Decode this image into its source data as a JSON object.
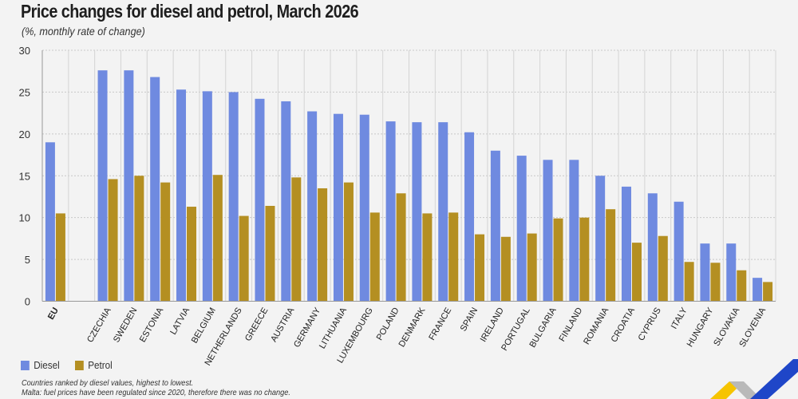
{
  "header": {
    "title": "Price changes for diesel and petrol, March 2026",
    "subtitle": "(%, monthly rate of change)"
  },
  "colors": {
    "diesel": "#6f8ae0",
    "petrol": "#b48f22",
    "background": "#f3f3f3",
    "gridline": "#c8c8c8",
    "axis": "#999999"
  },
  "legend": {
    "items": [
      {
        "label": "Diesel",
        "color": "#6f8ae0"
      },
      {
        "label": "Petrol",
        "color": "#b48f22"
      }
    ]
  },
  "notes": [
    "Countries ranked by diesel values, highest to lowest.",
    "Malta: fuel prices have been regulated since 2020, therefore there was no change."
  ],
  "chart_data": {
    "type": "bar",
    "title": "Price changes for diesel and petrol, March 2026",
    "subtitle": "(%, monthly rate of change)",
    "xlabel": "",
    "ylabel": "",
    "ylim": [
      0,
      30
    ],
    "yticks": [
      0,
      5,
      10,
      15,
      20,
      25,
      30
    ],
    "grid": true,
    "legend_position": "bottom-left",
    "categories": [
      "EU",
      "CZECHIA",
      "SWEDEN",
      "ESTONIA",
      "LATVIA",
      "BELGIUM",
      "NETHERLANDS",
      "GREECE",
      "AUSTRIA",
      "GERMANY",
      "LITHUANIA",
      "LUXEMBOURG",
      "POLAND",
      "DENMARK",
      "FRANCE",
      "SPAIN",
      "IRELAND",
      "PORTUGAL",
      "BULGARIA",
      "FINLAND",
      "ROMANIA",
      "CROATIA",
      "CYPRUS",
      "ITALY",
      "HUNGARY",
      "SLOVAKIA",
      "SLOVENIA"
    ],
    "bold_categories": [
      "EU"
    ],
    "gap_after": [
      "EU"
    ],
    "series": [
      {
        "name": "Diesel",
        "values": [
          19.0,
          27.6,
          27.6,
          26.8,
          25.3,
          25.1,
          25.0,
          24.2,
          23.9,
          22.7,
          22.4,
          22.3,
          21.5,
          21.4,
          21.4,
          20.2,
          18.0,
          17.4,
          16.9,
          16.9,
          15.0,
          13.7,
          12.9,
          11.9,
          6.9,
          6.9,
          2.8
        ]
      },
      {
        "name": "Petrol",
        "values": [
          10.5,
          14.6,
          15.0,
          14.2,
          11.3,
          15.1,
          10.2,
          11.4,
          14.8,
          13.5,
          14.2,
          10.6,
          12.9,
          10.5,
          10.6,
          8.0,
          7.7,
          8.1,
          9.9,
          10.0,
          11.0,
          7.0,
          7.8,
          4.7,
          4.6,
          3.7,
          2.3
        ]
      }
    ]
  }
}
